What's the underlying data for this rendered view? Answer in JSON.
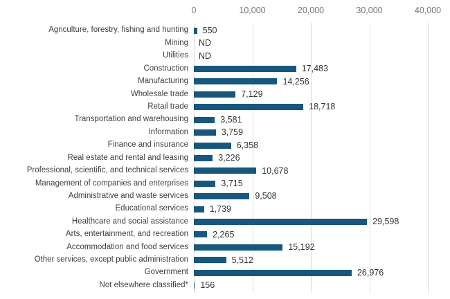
{
  "colors": {
    "bar": "#17577e",
    "grid": "#dadada",
    "axis_tick": "#757575",
    "category_label": "#3f3f3f",
    "value_label": "#333333",
    "background": "#ffffff"
  },
  "chart_data": {
    "type": "bar",
    "orientation": "horizontal",
    "title": "",
    "xlabel": "",
    "ylabel": "",
    "xlim": [
      0,
      40000
    ],
    "grid": true,
    "axis_position": "top",
    "no_data_label": "ND",
    "ticks": [
      {
        "value": 0,
        "label": "0"
      },
      {
        "value": 10000,
        "label": "10,000"
      },
      {
        "value": 20000,
        "label": "20,000"
      },
      {
        "value": 30000,
        "label": "30,000"
      },
      {
        "value": 40000,
        "label": "40,000"
      }
    ],
    "items": [
      {
        "category": "Agriculture, forestry, fishing and hunting",
        "value": 550,
        "display": "550"
      },
      {
        "category": "Mining",
        "value": null,
        "display": "ND"
      },
      {
        "category": "Utilities",
        "value": null,
        "display": "ND"
      },
      {
        "category": "Construction",
        "value": 17483,
        "display": "17,483"
      },
      {
        "category": "Manufacturing",
        "value": 14256,
        "display": "14,256"
      },
      {
        "category": "Wholesale trade",
        "value": 7129,
        "display": "7,129"
      },
      {
        "category": "Retail trade",
        "value": 18718,
        "display": "18,718"
      },
      {
        "category": "Transportation and warehousing",
        "value": 3581,
        "display": "3,581"
      },
      {
        "category": "Information",
        "value": 3759,
        "display": "3,759"
      },
      {
        "category": "Finance and insurance",
        "value": 6358,
        "display": "6,358"
      },
      {
        "category": "Real estate and rental and leasing",
        "value": 3226,
        "display": "3,226"
      },
      {
        "category": "Professional, scientific, and technical services",
        "value": 10678,
        "display": "10,678"
      },
      {
        "category": "Management of companies and enterprises",
        "value": 3715,
        "display": "3,715"
      },
      {
        "category": "Administrative and waste services",
        "value": 9508,
        "display": "9,508"
      },
      {
        "category": "Educational services",
        "value": 1739,
        "display": "1,739"
      },
      {
        "category": "Healthcare and social assistance",
        "value": 29598,
        "display": "29,598"
      },
      {
        "category": "Arts, entertainment, and recreation",
        "value": 2265,
        "display": "2,265"
      },
      {
        "category": "Accommodation and food services",
        "value": 15192,
        "display": "15,192"
      },
      {
        "category": "Other services, except public administration",
        "value": 5512,
        "display": "5,512"
      },
      {
        "category": "Government",
        "value": 26976,
        "display": "26,976"
      },
      {
        "category": "Not elsewhere classified*",
        "value": 156,
        "display": "156"
      }
    ]
  }
}
